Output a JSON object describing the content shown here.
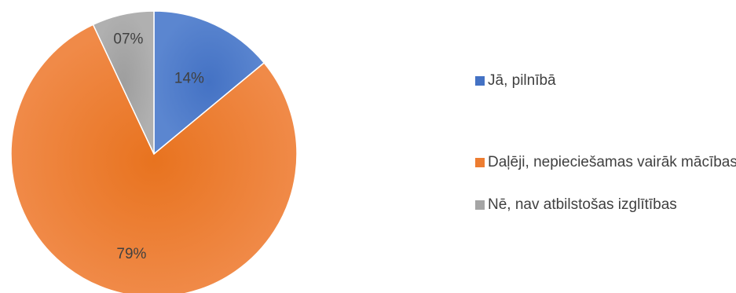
{
  "chart_data": {
    "type": "pie",
    "title": "",
    "start_angle_deg": 0,
    "slices": [
      {
        "label": "Jā, pilnībā",
        "value": 14,
        "display": "14%",
        "color": "#4472C4"
      },
      {
        "label": "Daļēji, nepieciešamas vairāk mācības",
        "value": 79,
        "display": "79%",
        "color": "#ED7D31"
      },
      {
        "label": "Nē, nav atbilstošas izglītības",
        "value": 7,
        "display": "07%",
        "color": "#A5A5A5"
      }
    ],
    "legend_placement": "right"
  }
}
